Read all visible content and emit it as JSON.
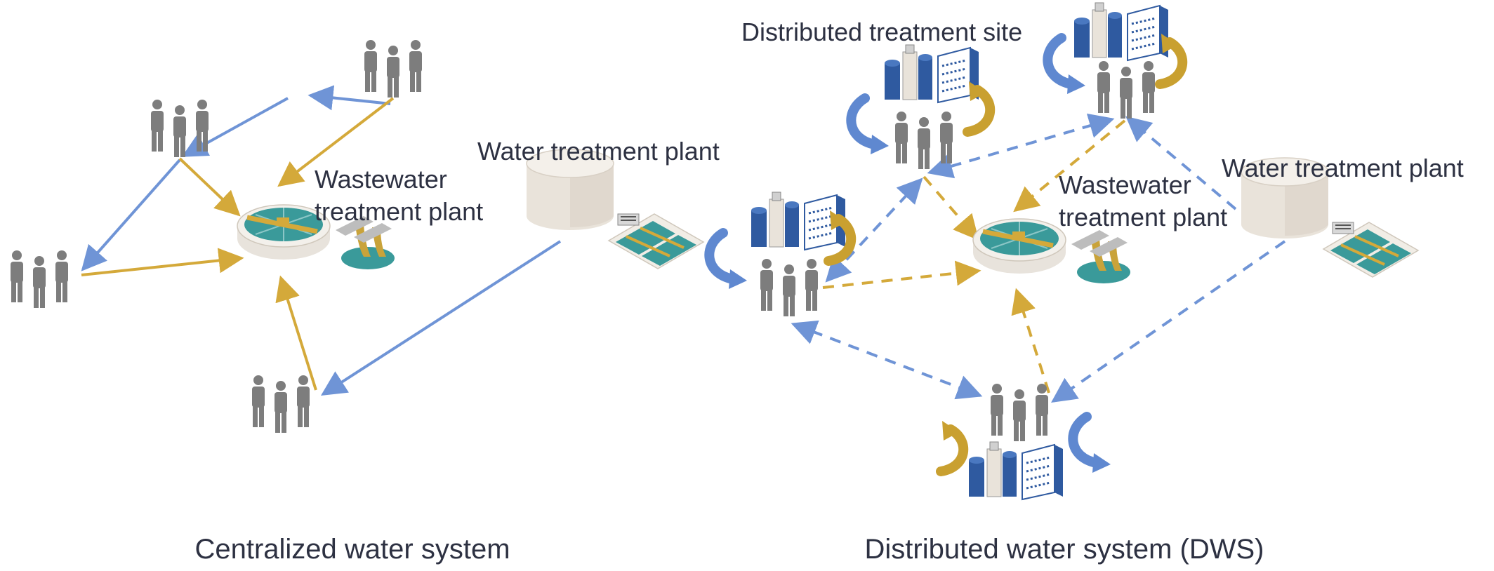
{
  "colors": {
    "water": "#6f94d6",
    "wastewater": "#d4a93a",
    "person": "#7d7d7d",
    "tank": "#e9e3da",
    "basin": "#3a9a9a",
    "unit_blue": "#2f5aa0",
    "text": "#2d3142"
  },
  "left_panel": {
    "caption": "Centralized water system",
    "wtp_label": "Water treatment plant",
    "wwtp_label_line1": "Wastewater",
    "wwtp_label_line2": "treatment plant"
  },
  "right_panel": {
    "caption": "Distributed water system (DWS)",
    "site_label": "Distributed treatment site",
    "wtp_label": "Water treatment plant",
    "wwtp_label_line1": "Wastewater",
    "wwtp_label_line2": "treatment plant"
  },
  "icons": {
    "people": "people-group-icon",
    "wtp": "water-treatment-plant-icon",
    "wwtp": "wastewater-treatment-plant-icon",
    "site": "distributed-treatment-unit-icon",
    "cycle": "recycling-arrow-icon"
  }
}
